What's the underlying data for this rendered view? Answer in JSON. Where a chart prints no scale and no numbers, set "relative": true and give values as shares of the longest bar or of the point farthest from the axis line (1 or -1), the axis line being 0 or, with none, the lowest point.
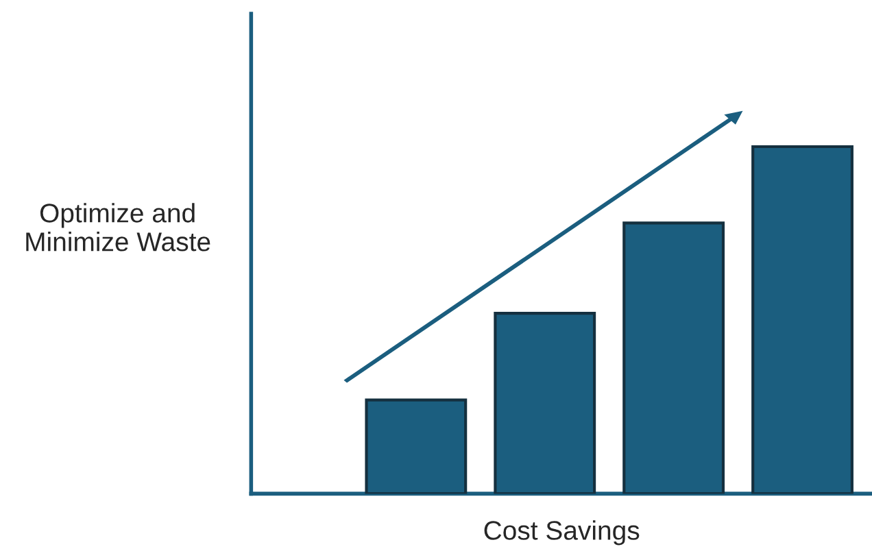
{
  "chart_data": {
    "type": "bar",
    "relative": true,
    "xlabel": "Cost Savings",
    "ylabel": "Optimize and\nMinimize Waste",
    "categories": [
      null,
      null,
      null,
      null
    ],
    "values": [
      0.27,
      0.52,
      0.78,
      1
    ],
    "color": "#1b5e7f",
    "grid": false,
    "legend": false,
    "tick_labels": false
  }
}
